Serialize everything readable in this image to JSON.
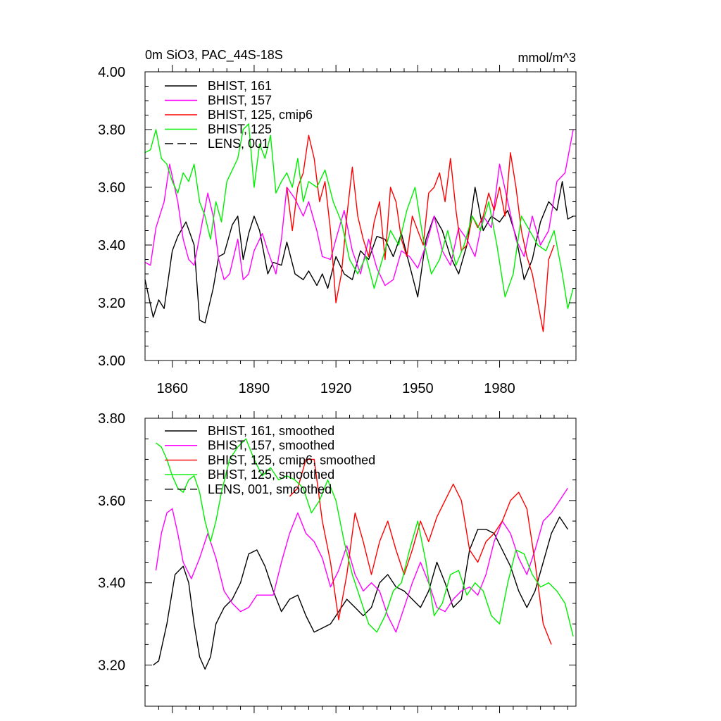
{
  "chart_data": [
    {
      "type": "line",
      "title_left": "0m SiO3, PAC_44S-18S",
      "title_right": "mmol/m^3",
      "xlabel": "",
      "ylabel": "",
      "xlim": [
        1850,
        2008
      ],
      "ylim": [
        3.0,
        4.0
      ],
      "yticks": [
        3.0,
        3.2,
        3.4,
        3.6,
        3.8,
        4.0
      ],
      "ytick_labels": [
        "3.00",
        "3.20",
        "3.40",
        "3.60",
        "3.80",
        "4.00"
      ],
      "xticks": [
        1860,
        1890,
        1920,
        1950,
        1980
      ],
      "xtick_labels": [
        "1860",
        "1890",
        "1920",
        "1950",
        "1980"
      ],
      "legend": [
        "BHIST, 161",
        "BHIST, 157",
        "BHIST, 125, cmip6",
        "BHIST, 125",
        "LENS, 001"
      ],
      "series": [
        {
          "name": "BHIST, 161",
          "color": "#000000",
          "x": [
            1850,
            1853,
            1855,
            1857,
            1860,
            1862,
            1865,
            1868,
            1870,
            1872,
            1875,
            1877,
            1879,
            1882,
            1884,
            1886,
            1888,
            1890,
            1892,
            1895,
            1897,
            1900,
            1902,
            1905,
            1908,
            1910,
            1913,
            1915,
            1917,
            1920,
            1923,
            1926,
            1929,
            1932,
            1935,
            1938,
            1941,
            1944,
            1947,
            1950,
            1953,
            1956,
            1959,
            1962,
            1965,
            1968,
            1971,
            1974,
            1977,
            1980,
            1983,
            1986,
            1989,
            1992,
            1995,
            1998,
            2001,
            2003,
            2005,
            2007
          ],
          "values": [
            3.28,
            3.15,
            3.21,
            3.18,
            3.38,
            3.43,
            3.48,
            3.4,
            3.14,
            3.13,
            3.25,
            3.36,
            3.37,
            3.47,
            3.5,
            3.35,
            3.44,
            3.5,
            3.45,
            3.3,
            3.34,
            3.33,
            3.41,
            3.3,
            3.28,
            3.31,
            3.26,
            3.3,
            3.25,
            3.36,
            3.3,
            3.28,
            3.38,
            3.35,
            3.43,
            3.42,
            3.36,
            3.44,
            3.33,
            3.22,
            3.42,
            3.5,
            3.45,
            3.36,
            3.3,
            3.4,
            3.6,
            3.45,
            3.5,
            3.48,
            3.52,
            3.43,
            3.28,
            3.35,
            3.48,
            3.55,
            3.52,
            3.62,
            3.49,
            3.5
          ]
        },
        {
          "name": "BHIST, 157",
          "color": "#ff00ff",
          "x": [
            1850,
            1852,
            1854,
            1857,
            1859,
            1862,
            1864,
            1866,
            1868,
            1870,
            1873,
            1875,
            1877,
            1879,
            1881,
            1884,
            1886,
            1888,
            1890,
            1893,
            1895,
            1898,
            1900,
            1902,
            1905,
            1908,
            1910,
            1913,
            1915,
            1918,
            1920,
            1923,
            1926,
            1929,
            1932,
            1935,
            1938,
            1941,
            1944,
            1947,
            1950,
            1953,
            1956,
            1959,
            1962,
            1965,
            1968,
            1971,
            1974,
            1977,
            1980,
            1983,
            1986,
            1989,
            1992,
            1995,
            1998,
            2001,
            2004,
            2007
          ],
          "values": [
            3.34,
            3.33,
            3.46,
            3.55,
            3.68,
            3.55,
            3.42,
            3.35,
            3.33,
            3.43,
            3.58,
            3.5,
            3.35,
            3.28,
            3.3,
            3.42,
            3.28,
            3.3,
            3.38,
            3.44,
            3.38,
            3.3,
            3.42,
            3.6,
            3.56,
            3.5,
            3.55,
            3.45,
            3.36,
            3.35,
            3.42,
            3.52,
            3.38,
            3.3,
            3.42,
            3.32,
            3.26,
            3.28,
            3.38,
            3.36,
            3.32,
            3.4,
            3.5,
            3.38,
            3.33,
            3.46,
            3.42,
            3.36,
            3.5,
            3.46,
            3.68,
            3.55,
            3.42,
            3.36,
            3.5,
            3.4,
            3.45,
            3.62,
            3.65,
            3.8
          ]
        },
        {
          "name": "BHIST, 125, cmip6",
          "color": "#ff0000",
          "x": [
            1902,
            1904,
            1906,
            1908,
            1910,
            1912,
            1914,
            1916,
            1918,
            1920,
            1922,
            1924,
            1926,
            1928,
            1930,
            1932,
            1934,
            1936,
            1938,
            1940,
            1942,
            1944,
            1946,
            1948,
            1950,
            1952,
            1954,
            1956,
            1958,
            1960,
            1962,
            1964,
            1966,
            1968,
            1970,
            1972,
            1974,
            1976,
            1978,
            1980,
            1982,
            1984,
            1986,
            1988,
            1990,
            1992,
            1994,
            1996,
            1998,
            2000
          ],
          "values": [
            3.6,
            3.45,
            3.6,
            3.65,
            3.78,
            3.7,
            3.55,
            3.62,
            3.45,
            3.2,
            3.3,
            3.5,
            3.67,
            3.5,
            3.42,
            3.36,
            3.48,
            3.55,
            3.35,
            3.6,
            3.55,
            3.42,
            3.36,
            3.5,
            3.45,
            3.4,
            3.58,
            3.6,
            3.65,
            3.55,
            3.7,
            3.52,
            3.38,
            3.4,
            3.5,
            3.46,
            3.5,
            3.58,
            3.52,
            3.6,
            3.5,
            3.72,
            3.6,
            3.45,
            3.36,
            3.3,
            3.2,
            3.1,
            3.35,
            3.4
          ]
        },
        {
          "name": "BHIST, 125",
          "color": "#00ee00",
          "x": [
            1850,
            1852,
            1854,
            1856,
            1858,
            1860,
            1862,
            1864,
            1866,
            1868,
            1870,
            1872,
            1874,
            1876,
            1878,
            1880,
            1882,
            1884,
            1886,
            1888,
            1890,
            1892,
            1894,
            1896,
            1898,
            1900,
            1902,
            1904,
            1906,
            1908,
            1910,
            1913,
            1916,
            1919,
            1922,
            1925,
            1928,
            1931,
            1934,
            1937,
            1940,
            1943,
            1946,
            1949,
            1952,
            1955,
            1958,
            1961,
            1964,
            1967,
            1970,
            1973,
            1976,
            1979,
            1982,
            1985,
            1988,
            1991,
            1994,
            1997,
            2000,
            2003,
            2005,
            2007
          ],
          "values": [
            3.72,
            3.73,
            3.8,
            3.7,
            3.68,
            3.62,
            3.58,
            3.65,
            3.62,
            3.68,
            3.55,
            3.5,
            3.42,
            3.55,
            3.48,
            3.62,
            3.66,
            3.7,
            3.8,
            3.82,
            3.6,
            3.75,
            3.7,
            3.78,
            3.58,
            3.62,
            3.65,
            3.6,
            3.7,
            3.55,
            3.62,
            3.6,
            3.66,
            3.55,
            3.48,
            3.35,
            3.3,
            3.36,
            3.25,
            3.35,
            3.45,
            3.4,
            3.52,
            3.6,
            3.42,
            3.3,
            3.35,
            3.45,
            3.33,
            3.4,
            3.5,
            3.45,
            3.55,
            3.4,
            3.22,
            3.3,
            3.5,
            3.45,
            3.4,
            3.38,
            3.45,
            3.3,
            3.18,
            3.25
          ]
        }
      ]
    },
    {
      "type": "line",
      "xlim": [
        1850,
        2008
      ],
      "ylim": [
        3.1,
        3.8
      ],
      "yticks": [
        3.2,
        3.4,
        3.6,
        3.8
      ],
      "ytick_labels": [
        "3.20",
        "3.40",
        "3.60",
        "3.80"
      ],
      "xticks": [
        1860,
        1890,
        1920,
        1950,
        1980
      ],
      "legend": [
        "BHIST, 161, smoothed",
        "BHIST, 157, smoothed",
        "BHIST, 125, cmip6, smoothed",
        "BHIST, 125, smoothed",
        "LENS, 001, smoothed"
      ],
      "series": [
        {
          "name": "BHIST, 161, smoothed",
          "color": "#000000",
          "x": [
            1853,
            1855,
            1858,
            1861,
            1864,
            1866,
            1868,
            1870,
            1872,
            1874,
            1876,
            1879,
            1882,
            1885,
            1888,
            1891,
            1894,
            1897,
            1900,
            1903,
            1906,
            1909,
            1912,
            1915,
            1918,
            1921,
            1924,
            1927,
            1930,
            1933,
            1936,
            1939,
            1942,
            1945,
            1948,
            1951,
            1954,
            1957,
            1960,
            1963,
            1966,
            1969,
            1972,
            1975,
            1978,
            1981,
            1984,
            1987,
            1990,
            1993,
            1996,
            1999,
            2002,
            2005
          ],
          "values": [
            3.2,
            3.21,
            3.3,
            3.42,
            3.44,
            3.4,
            3.3,
            3.22,
            3.19,
            3.22,
            3.3,
            3.34,
            3.36,
            3.4,
            3.47,
            3.48,
            3.44,
            3.38,
            3.33,
            3.36,
            3.37,
            3.32,
            3.28,
            3.29,
            3.3,
            3.33,
            3.36,
            3.34,
            3.32,
            3.34,
            3.4,
            3.42,
            3.39,
            3.38,
            3.36,
            3.34,
            3.38,
            3.45,
            3.4,
            3.34,
            3.36,
            3.48,
            3.53,
            3.53,
            3.52,
            3.48,
            3.44,
            3.38,
            3.34,
            3.38,
            3.45,
            3.52,
            3.56,
            3.53
          ]
        },
        {
          "name": "BHIST, 157, smoothed",
          "color": "#ff00ff",
          "x": [
            1854,
            1856,
            1858,
            1860,
            1862,
            1864,
            1867,
            1870,
            1873,
            1876,
            1879,
            1882,
            1885,
            1888,
            1891,
            1894,
            1897,
            1900,
            1903,
            1906,
            1909,
            1912,
            1915,
            1918,
            1921,
            1924,
            1927,
            1930,
            1933,
            1936,
            1939,
            1942,
            1945,
            1948,
            1951,
            1954,
            1957,
            1960,
            1963,
            1966,
            1969,
            1972,
            1975,
            1978,
            1981,
            1984,
            1987,
            1990,
            1993,
            1996,
            1999,
            2002,
            2005
          ],
          "values": [
            3.43,
            3.52,
            3.57,
            3.58,
            3.52,
            3.45,
            3.41,
            3.46,
            3.52,
            3.46,
            3.38,
            3.35,
            3.33,
            3.34,
            3.37,
            3.37,
            3.37,
            3.45,
            3.52,
            3.57,
            3.52,
            3.5,
            3.46,
            3.39,
            3.43,
            3.49,
            3.42,
            3.38,
            3.4,
            3.38,
            3.32,
            3.28,
            3.34,
            3.4,
            3.45,
            3.4,
            3.34,
            3.33,
            3.36,
            3.38,
            3.39,
            3.37,
            3.42,
            3.5,
            3.55,
            3.52,
            3.46,
            3.42,
            3.48,
            3.55,
            3.57,
            3.6,
            3.63
          ]
        },
        {
          "name": "BHIST, 125, cmip6, smoothed",
          "color": "#ff0000",
          "x": [
            1903,
            1906,
            1909,
            1912,
            1915,
            1918,
            1921,
            1924,
            1927,
            1930,
            1933,
            1936,
            1939,
            1942,
            1945,
            1948,
            1951,
            1954,
            1957,
            1960,
            1963,
            1966,
            1969,
            1972,
            1975,
            1978,
            1981,
            1984,
            1987,
            1990,
            1993,
            1996,
            1999
          ],
          "values": [
            3.61,
            3.63,
            3.7,
            3.7,
            3.55,
            3.45,
            3.31,
            3.42,
            3.57,
            3.5,
            3.42,
            3.5,
            3.55,
            3.48,
            3.42,
            3.48,
            3.55,
            3.5,
            3.56,
            3.6,
            3.64,
            3.6,
            3.48,
            3.45,
            3.5,
            3.52,
            3.55,
            3.6,
            3.62,
            3.58,
            3.45,
            3.3,
            3.25
          ]
        },
        {
          "name": "BHIST, 125, smoothed",
          "color": "#00ee00",
          "x": [
            1854,
            1856,
            1858,
            1860,
            1862,
            1864,
            1866,
            1868,
            1870,
            1872,
            1874,
            1876,
            1878,
            1881,
            1884,
            1887,
            1890,
            1893,
            1896,
            1899,
            1902,
            1905,
            1908,
            1911,
            1914,
            1917,
            1920,
            1923,
            1926,
            1929,
            1932,
            1935,
            1938,
            1941,
            1944,
            1947,
            1950,
            1953,
            1956,
            1959,
            1962,
            1965,
            1968,
            1971,
            1974,
            1977,
            1980,
            1983,
            1986,
            1989,
            1992,
            1995,
            1998,
            2001,
            2004,
            2007
          ],
          "values": [
            3.74,
            3.73,
            3.7,
            3.66,
            3.63,
            3.62,
            3.65,
            3.66,
            3.62,
            3.55,
            3.5,
            3.55,
            3.62,
            3.7,
            3.73,
            3.75,
            3.7,
            3.66,
            3.68,
            3.65,
            3.66,
            3.65,
            3.63,
            3.57,
            3.6,
            3.65,
            3.6,
            3.5,
            3.42,
            3.36,
            3.3,
            3.28,
            3.32,
            3.38,
            3.4,
            3.48,
            3.55,
            3.45,
            3.32,
            3.35,
            3.42,
            3.43,
            3.37,
            3.4,
            3.38,
            3.32,
            3.3,
            3.4,
            3.48,
            3.47,
            3.42,
            3.39,
            3.4,
            3.38,
            3.35,
            3.27
          ]
        }
      ]
    }
  ]
}
